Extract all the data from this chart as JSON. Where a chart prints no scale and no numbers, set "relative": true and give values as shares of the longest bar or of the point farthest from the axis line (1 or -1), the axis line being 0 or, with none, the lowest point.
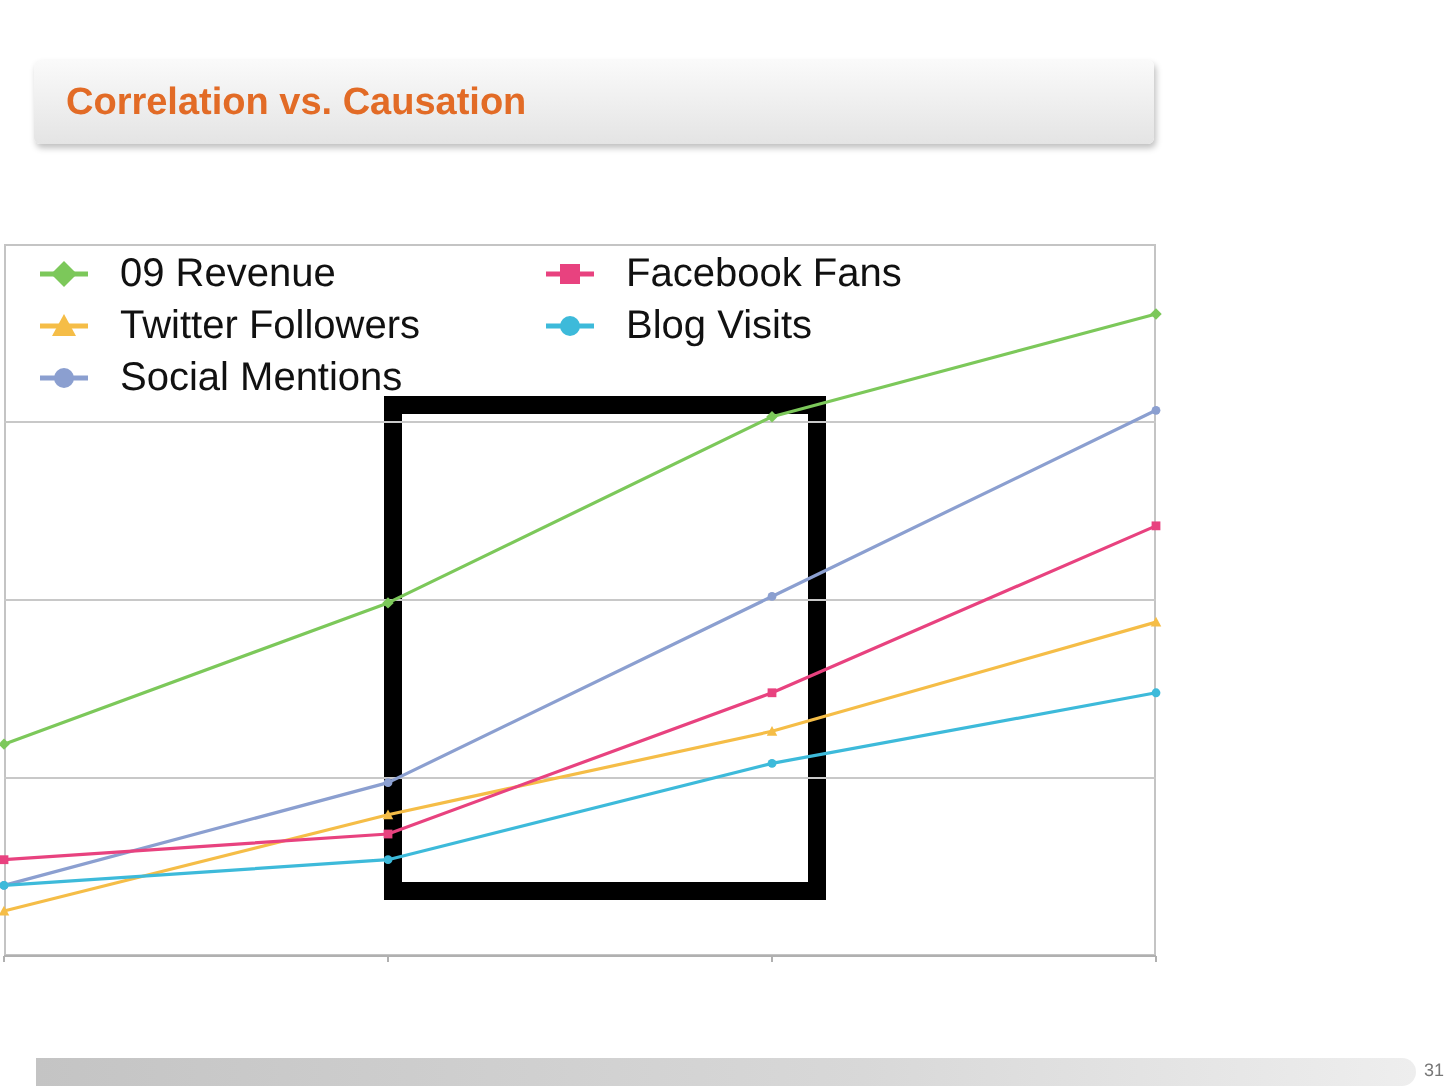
{
  "chart_data": {
    "type": "line",
    "title": "Correlation vs. Causation",
    "annotations": [
      "31"
    ],
    "categories": [
      null,
      null,
      null,
      null
    ],
    "relative": true,
    "series": [
      {
        "name": "09 Revenue",
        "color": "#7cc85a",
        "marker": "diamond",
        "values": [
          0.33,
          0.55,
          0.84,
          1
        ]
      },
      {
        "name": "Twitter Followers",
        "color": "#f5bd47",
        "marker": "triangle",
        "values": [
          0.07,
          0.22,
          0.35,
          0.52
        ]
      },
      {
        "name": "Social Mentions",
        "color": "#8b9fd0",
        "marker": "circle",
        "values": [
          0.11,
          0.27,
          0.56,
          0.85
        ]
      },
      {
        "name": "Facebook Fans",
        "color": "#e8427f",
        "marker": "square",
        "values": [
          0.15,
          0.19,
          0.41,
          0.67
        ]
      },
      {
        "name": "Blog Visits",
        "color": "#3dbada",
        "marker": "circle",
        "values": [
          0.11,
          0.15,
          0.3,
          0.41
        ]
      }
    ],
    "grid": "y",
    "legend": "top left",
    "line_style": "solid"
  }
}
